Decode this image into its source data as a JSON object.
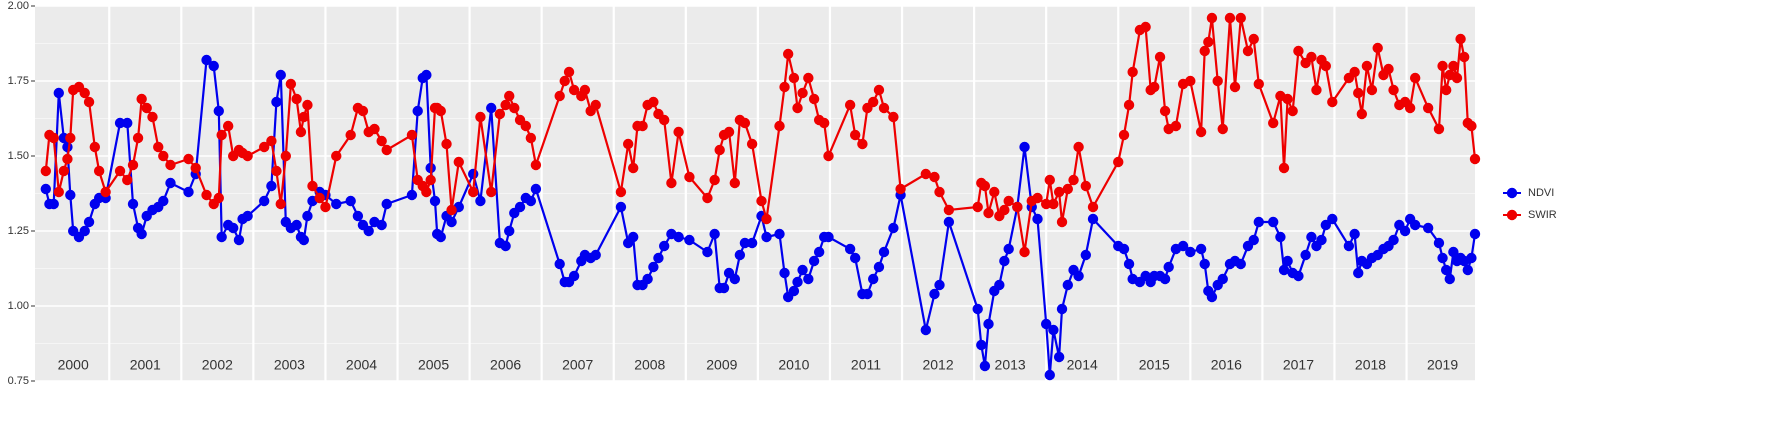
{
  "chart_data": {
    "type": "line",
    "x": [
      2000.12,
      2000.17,
      2000.23,
      2000.3,
      2000.37,
      2000.42,
      2000.46,
      2000.5,
      2000.58,
      2000.66,
      2000.72,
      2000.8,
      2000.86,
      2000.95,
      2001.15,
      2001.25,
      2001.33,
      2001.4,
      2001.45,
      2001.52,
      2001.6,
      2001.68,
      2001.75,
      2001.85,
      2002.1,
      2002.2,
      2002.35,
      2002.45,
      2002.52,
      2002.56,
      2002.65,
      2002.72,
      2002.8,
      2002.85,
      2002.92,
      2003.15,
      2003.25,
      2003.32,
      2003.38,
      2003.45,
      2003.52,
      2003.6,
      2003.66,
      2003.7,
      2003.75,
      2003.82,
      2003.92,
      2004.0,
      2004.15,
      2004.35,
      2004.45,
      2004.52,
      2004.6,
      2004.68,
      2004.78,
      2004.85,
      2005.2,
      2005.28,
      2005.35,
      2005.4,
      2005.46,
      2005.52,
      2005.55,
      2005.6,
      2005.68,
      2005.75,
      2005.85,
      2006.05,
      2006.15,
      2006.3,
      2006.42,
      2006.5,
      2006.55,
      2006.62,
      2006.7,
      2006.78,
      2006.85,
      2006.92,
      2007.25,
      2007.32,
      2007.38,
      2007.45,
      2007.55,
      2007.6,
      2007.68,
      2007.75,
      2008.1,
      2008.2,
      2008.27,
      2008.33,
      2008.4,
      2008.47,
      2008.55,
      2008.62,
      2008.7,
      2008.8,
      2008.9,
      2009.05,
      2009.3,
      2009.4,
      2009.47,
      2009.53,
      2009.6,
      2009.68,
      2009.75,
      2009.82,
      2009.92,
      2010.05,
      2010.12,
      2010.3,
      2010.37,
      2010.42,
      2010.5,
      2010.55,
      2010.62,
      2010.7,
      2010.78,
      2010.85,
      2010.92,
      2010.98,
      2011.28,
      2011.35,
      2011.45,
      2011.52,
      2011.6,
      2011.68,
      2011.75,
      2011.88,
      2011.98,
      2012.33,
      2012.45,
      2012.52,
      2012.65,
      2013.05,
      2013.1,
      2013.15,
      2013.2,
      2013.28,
      2013.35,
      2013.42,
      2013.48,
      2013.6,
      2013.7,
      2013.8,
      2013.88,
      2014.0,
      2014.05,
      2014.1,
      2014.18,
      2014.22,
      2014.3,
      2014.38,
      2014.45,
      2014.55,
      2014.65,
      2015.0,
      2015.08,
      2015.15,
      2015.2,
      2015.3,
      2015.38,
      2015.45,
      2015.5,
      2015.58,
      2015.65,
      2015.7,
      2015.8,
      2015.9,
      2016.0,
      2016.15,
      2016.2,
      2016.25,
      2016.3,
      2016.38,
      2016.45,
      2016.55,
      2016.62,
      2016.7,
      2016.8,
      2016.88,
      2016.95,
      2017.15,
      2017.25,
      2017.3,
      2017.35,
      2017.42,
      2017.5,
      2017.6,
      2017.68,
      2017.75,
      2017.82,
      2017.88,
      2017.97,
      2018.2,
      2018.28,
      2018.33,
      2018.38,
      2018.45,
      2018.52,
      2018.6,
      2018.68,
      2018.75,
      2018.82,
      2018.9,
      2018.98,
      2019.05,
      2019.12,
      2019.3,
      2019.45,
      2019.5,
      2019.55,
      2019.6,
      2019.65,
      2019.7,
      2019.75,
      2019.8,
      2019.85,
      2019.9,
      2019.95
    ],
    "series": [
      {
        "name": "NDVI",
        "color": "#0000ee",
        "values": [
          1.39,
          1.34,
          1.34,
          1.71,
          1.56,
          1.53,
          1.37,
          1.25,
          1.23,
          1.25,
          1.28,
          1.34,
          1.36,
          1.36,
          1.61,
          1.61,
          1.34,
          1.26,
          1.24,
          1.3,
          1.32,
          1.33,
          1.35,
          1.41,
          1.38,
          1.44,
          1.82,
          1.8,
          1.65,
          1.23,
          1.27,
          1.26,
          1.22,
          1.29,
          1.3,
          1.35,
          1.4,
          1.68,
          1.77,
          1.28,
          1.26,
          1.27,
          1.23,
          1.22,
          1.3,
          1.35,
          1.38,
          1.37,
          1.34,
          1.35,
          1.3,
          1.27,
          1.25,
          1.28,
          1.27,
          1.34,
          1.37,
          1.65,
          1.76,
          1.77,
          1.46,
          1.35,
          1.24,
          1.23,
          1.3,
          1.28,
          1.33,
          1.44,
          1.35,
          1.66,
          1.21,
          1.2,
          1.25,
          1.31,
          1.33,
          1.36,
          1.35,
          1.39,
          1.14,
          1.08,
          1.08,
          1.1,
          1.15,
          1.17,
          1.16,
          1.17,
          1.33,
          1.21,
          1.23,
          1.07,
          1.07,
          1.09,
          1.13,
          1.16,
          1.2,
          1.24,
          1.23,
          1.22,
          1.18,
          1.24,
          1.06,
          1.06,
          1.11,
          1.09,
          1.17,
          1.21,
          1.21,
          1.3,
          1.23,
          1.24,
          1.11,
          1.03,
          1.05,
          1.08,
          1.12,
          1.09,
          1.15,
          1.18,
          1.23,
          1.23,
          1.19,
          1.16,
          1.04,
          1.04,
          1.09,
          1.13,
          1.18,
          1.26,
          1.37,
          0.92,
          1.04,
          1.07,
          1.28,
          0.99,
          0.87,
          0.8,
          0.94,
          1.05,
          1.07,
          1.15,
          1.19,
          1.33,
          1.53,
          1.33,
          1.29,
          0.94,
          0.77,
          0.92,
          0.83,
          0.99,
          1.07,
          1.12,
          1.1,
          1.17,
          1.29,
          1.2,
          1.19,
          1.14,
          1.09,
          1.08,
          1.1,
          1.08,
          1.1,
          1.1,
          1.09,
          1.13,
          1.19,
          1.2,
          1.18,
          1.19,
          1.14,
          1.05,
          1.03,
          1.07,
          1.09,
          1.14,
          1.15,
          1.14,
          1.2,
          1.22,
          1.28,
          1.28,
          1.23,
          1.12,
          1.15,
          1.11,
          1.1,
          1.17,
          1.23,
          1.2,
          1.22,
          1.27,
          1.29,
          1.2,
          1.24,
          1.11,
          1.15,
          1.14,
          1.16,
          1.17,
          1.19,
          1.2,
          1.22,
          1.27,
          1.25,
          1.29,
          1.27,
          1.26,
          1.21,
          1.16,
          1.12,
          1.09,
          1.18,
          1.15,
          1.16,
          1.15,
          1.12,
          1.16,
          1.24
        ]
      },
      {
        "name": "SWIR",
        "color": "#ee0000",
        "values": [
          1.45,
          1.57,
          1.56,
          1.38,
          1.45,
          1.49,
          1.56,
          1.72,
          1.73,
          1.71,
          1.68,
          1.53,
          1.45,
          1.38,
          1.45,
          1.42,
          1.47,
          1.56,
          1.69,
          1.66,
          1.63,
          1.53,
          1.5,
          1.47,
          1.49,
          1.46,
          1.37,
          1.34,
          1.36,
          1.57,
          1.6,
          1.5,
          1.52,
          1.51,
          1.5,
          1.53,
          1.55,
          1.45,
          1.34,
          1.5,
          1.74,
          1.69,
          1.58,
          1.63,
          1.67,
          1.4,
          1.36,
          1.33,
          1.5,
          1.57,
          1.66,
          1.65,
          1.58,
          1.59,
          1.55,
          1.52,
          1.57,
          1.42,
          1.4,
          1.38,
          1.42,
          1.66,
          1.66,
          1.65,
          1.54,
          1.32,
          1.48,
          1.38,
          1.63,
          1.38,
          1.64,
          1.67,
          1.7,
          1.66,
          1.62,
          1.6,
          1.56,
          1.47,
          1.7,
          1.75,
          1.78,
          1.72,
          1.7,
          1.72,
          1.65,
          1.67,
          1.38,
          1.54,
          1.46,
          1.6,
          1.6,
          1.67,
          1.68,
          1.64,
          1.62,
          1.41,
          1.58,
          1.43,
          1.36,
          1.42,
          1.52,
          1.57,
          1.58,
          1.41,
          1.62,
          1.61,
          1.54,
          1.35,
          1.29,
          1.6,
          1.73,
          1.84,
          1.76,
          1.66,
          1.71,
          1.76,
          1.69,
          1.62,
          1.61,
          1.5,
          1.67,
          1.57,
          1.54,
          1.66,
          1.68,
          1.72,
          1.66,
          1.63,
          1.39,
          1.44,
          1.43,
          1.38,
          1.32,
          1.33,
          1.41,
          1.4,
          1.31,
          1.38,
          1.3,
          1.32,
          1.35,
          1.33,
          1.18,
          1.35,
          1.36,
          1.34,
          1.42,
          1.34,
          1.38,
          1.28,
          1.39,
          1.42,
          1.53,
          1.4,
          1.33,
          1.48,
          1.57,
          1.67,
          1.78,
          1.92,
          1.93,
          1.72,
          1.73,
          1.83,
          1.65,
          1.59,
          1.6,
          1.74,
          1.75,
          1.58,
          1.85,
          1.88,
          1.96,
          1.75,
          1.59,
          1.96,
          1.73,
          1.96,
          1.85,
          1.89,
          1.74,
          1.61,
          1.7,
          1.46,
          1.69,
          1.65,
          1.85,
          1.81,
          1.83,
          1.72,
          1.82,
          1.8,
          1.68,
          1.76,
          1.78,
          1.71,
          1.64,
          1.8,
          1.72,
          1.86,
          1.77,
          1.79,
          1.72,
          1.67,
          1.68,
          1.66,
          1.76,
          1.66,
          1.59,
          1.8,
          1.72,
          1.77,
          1.8,
          1.76,
          1.89,
          1.83,
          1.61,
          1.6,
          1.49
        ]
      }
    ],
    "xlim": [
      1999.97,
      2019.95
    ],
    "xticks": [
      {
        "value": 2000.5,
        "label": "2000"
      },
      {
        "value": 2001.5,
        "label": "2001"
      },
      {
        "value": 2002.5,
        "label": "2002"
      },
      {
        "value": 2003.5,
        "label": "2003"
      },
      {
        "value": 2004.5,
        "label": "2004"
      },
      {
        "value": 2005.5,
        "label": "2005"
      },
      {
        "value": 2006.5,
        "label": "2006"
      },
      {
        "value": 2007.5,
        "label": "2007"
      },
      {
        "value": 2008.5,
        "label": "2008"
      },
      {
        "value": 2009.5,
        "label": "2009"
      },
      {
        "value": 2010.5,
        "label": "2010"
      },
      {
        "value": 2011.5,
        "label": "2011"
      },
      {
        "value": 2012.5,
        "label": "2012"
      },
      {
        "value": 2013.5,
        "label": "2013"
      },
      {
        "value": 2014.5,
        "label": "2014"
      },
      {
        "value": 2015.5,
        "label": "2015"
      },
      {
        "value": 2016.5,
        "label": "2016"
      },
      {
        "value": 2017.5,
        "label": "2017"
      },
      {
        "value": 2018.5,
        "label": "2018"
      },
      {
        "value": 2019.5,
        "label": "2019"
      }
    ],
    "ylim": [
      0.75,
      2
    ],
    "yticks": [
      0.75,
      {
        "value": 1,
        "label": "1.00"
      },
      1.25,
      {
        "value": 1.5,
        "label": "1.50"
      },
      1.75,
      {
        "value": 2,
        "label": "2.00"
      }
    ],
    "grid": true,
    "legend": "right"
  }
}
